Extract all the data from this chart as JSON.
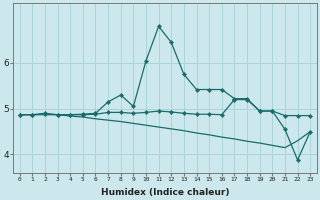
{
  "xlabel": "Humidex (Indice chaleur)",
  "x_ticks": [
    0,
    1,
    2,
    3,
    4,
    5,
    6,
    7,
    8,
    9,
    10,
    11,
    12,
    13,
    14,
    15,
    16,
    17,
    18,
    19,
    20,
    21,
    22,
    23
  ],
  "background_color": "#cce8ec",
  "grid_color": "#a8d4d8",
  "line_color": "#1a6b6b",
  "ylim": [
    3.6,
    7.3
  ],
  "xlim": [
    -0.5,
    23.5
  ],
  "series1_x": [
    0,
    1,
    2,
    3,
    4,
    5,
    6,
    7,
    8,
    9,
    10,
    11,
    12,
    13,
    14,
    15,
    16,
    17,
    18,
    19,
    20,
    21,
    22,
    23
  ],
  "series1_y": [
    4.87,
    4.87,
    4.9,
    4.87,
    4.87,
    4.88,
    4.9,
    5.15,
    5.3,
    5.05,
    6.05,
    6.8,
    6.45,
    5.75,
    5.42,
    5.42,
    5.42,
    5.22,
    5.22,
    4.95,
    4.95,
    4.55,
    3.88,
    4.5
  ],
  "series2_x": [
    0,
    1,
    2,
    3,
    4,
    5,
    6,
    7,
    8,
    9,
    10,
    11,
    12,
    13,
    14,
    15,
    16,
    17,
    18,
    19,
    20,
    21,
    22,
    23
  ],
  "series2_y": [
    4.87,
    4.87,
    4.88,
    4.87,
    4.87,
    4.87,
    4.88,
    4.92,
    4.92,
    4.9,
    4.92,
    4.95,
    4.93,
    4.9,
    4.88,
    4.88,
    4.87,
    5.2,
    5.2,
    4.95,
    4.95,
    4.85,
    4.85,
    4.85
  ],
  "series3_x": [
    0,
    1,
    2,
    3,
    4,
    5,
    6,
    7,
    8,
    9,
    10,
    11,
    12,
    13,
    14,
    15,
    16,
    17,
    18,
    19,
    20,
    21,
    22,
    23
  ],
  "series3_y": [
    4.87,
    4.87,
    4.87,
    4.87,
    4.84,
    4.82,
    4.78,
    4.75,
    4.72,
    4.68,
    4.64,
    4.6,
    4.56,
    4.52,
    4.47,
    4.43,
    4.38,
    4.34,
    4.29,
    4.25,
    4.2,
    4.15,
    4.3,
    4.5
  ],
  "yticks": [
    4,
    5,
    6
  ],
  "marker": "D",
  "markersize": 2.2,
  "linewidth": 0.9
}
